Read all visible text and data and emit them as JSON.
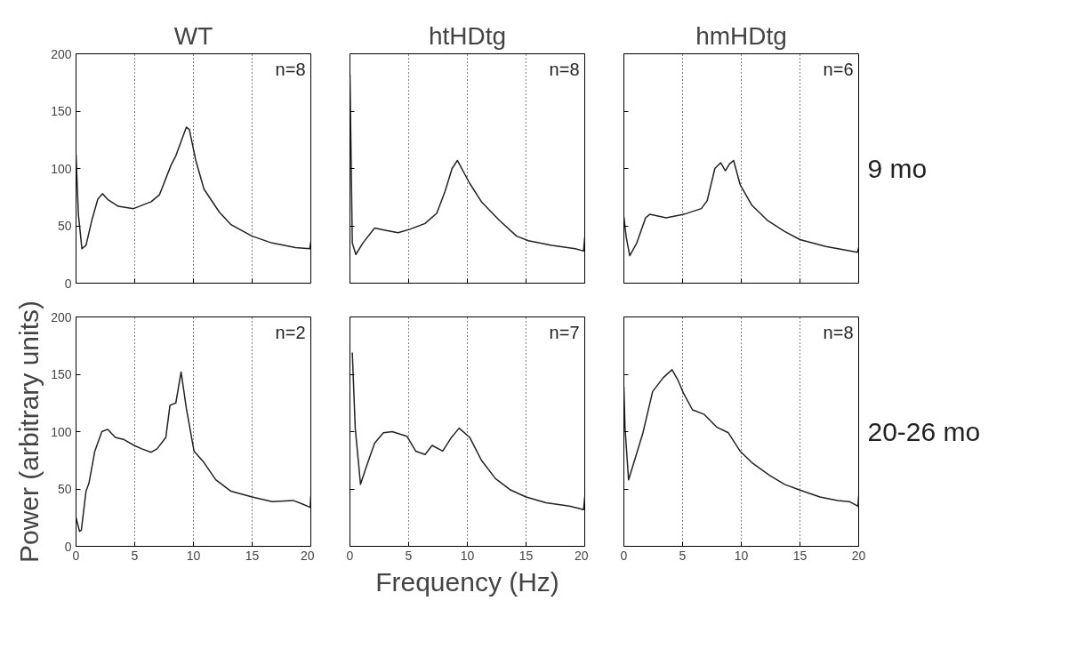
{
  "chart_data": [
    {
      "type": "line",
      "title": "WT",
      "annotations": [
        "n=8"
      ],
      "xlim": [
        0,
        20
      ],
      "ylim": [
        0,
        200
      ],
      "xticks": [
        0,
        5,
        10,
        15,
        20
      ],
      "yticks": [
        0,
        50,
        100,
        150,
        200
      ],
      "tick_labels": "y",
      "grid": "x",
      "line_style": "solid",
      "series": [
        {
          "color": "#222222",
          "x": [
            0,
            0.2,
            0.5,
            0.85,
            1.35,
            1.85,
            2.25,
            2.7,
            3.6,
            4.9,
            6.4,
            7.1,
            8.1,
            8.5,
            9.0,
            9.4,
            9.65,
            10.2,
            10.9,
            12.2,
            13.2,
            15.0,
            16.7,
            18.7,
            19.9,
            20
          ],
          "values": [
            112,
            60,
            30,
            33,
            55,
            73,
            78,
            73,
            67,
            65,
            71,
            77,
            103,
            111,
            125,
            136,
            134,
            107,
            82,
            62,
            51,
            41,
            35,
            31,
            30,
            36
          ]
        }
      ]
    },
    {
      "type": "line",
      "title": "htHDtg",
      "annotations": [
        "n=8"
      ],
      "xlim": [
        0,
        20
      ],
      "ylim": [
        0,
        200
      ],
      "xticks": [
        0,
        5,
        10,
        15,
        20
      ],
      "yticks": [
        0,
        50,
        100,
        150,
        200
      ],
      "tick_labels": false,
      "grid": "x",
      "line_style": "solid",
      "series": [
        {
          "color": "#222222",
          "x": [
            0,
            0.2,
            0.5,
            1.1,
            2.1,
            3.1,
            4.1,
            5.1,
            6.4,
            7.4,
            8.1,
            8.7,
            9.15,
            10.2,
            11.2,
            12.7,
            14.2,
            15.2,
            17.2,
            19.2,
            19.9,
            20
          ],
          "values": [
            182,
            35,
            25,
            35,
            48,
            46,
            44,
            47,
            52,
            61,
            80,
            100,
            107,
            87,
            71,
            55,
            41,
            37,
            33,
            30,
            28,
            40
          ]
        }
      ]
    },
    {
      "type": "line",
      "title": "hmHDtg",
      "annotations": [
        "n=6",
        "9 mo"
      ],
      "xlim": [
        0,
        20
      ],
      "ylim": [
        0,
        200
      ],
      "xticks": [
        0,
        5,
        10,
        15,
        20
      ],
      "yticks": [
        0,
        50,
        100,
        150,
        200
      ],
      "tick_labels": false,
      "grid": "x",
      "line_style": "solid",
      "series": [
        {
          "color": "#222222",
          "x": [
            0,
            0.2,
            0.5,
            1.1,
            1.85,
            2.2,
            3.6,
            5.1,
            6.6,
            7.1,
            7.75,
            8.25,
            8.65,
            9.0,
            9.35,
            9.9,
            10.9,
            12.2,
            13.7,
            15.0,
            17.2,
            19.9,
            20
          ],
          "values": [
            58,
            40,
            24,
            35,
            57,
            60,
            57,
            60,
            65,
            72,
            100,
            105,
            98,
            104,
            107,
            86,
            68,
            55,
            45,
            38,
            32,
            27,
            31
          ]
        }
      ]
    },
    {
      "type": "line",
      "ylabel": "Power (arbitrary units)",
      "annotations": [
        "n=2"
      ],
      "xlim": [
        0,
        20
      ],
      "ylim": [
        0,
        200
      ],
      "xticks": [
        0,
        5,
        10,
        15,
        20
      ],
      "yticks": [
        0,
        50,
        100,
        150,
        200
      ],
      "grid": "x",
      "line_style": "solid",
      "series": [
        {
          "color": "#222222",
          "x": [
            0,
            0.3,
            0.45,
            0.85,
            1.1,
            1.6,
            2.2,
            2.7,
            3.35,
            4.1,
            4.95,
            5.6,
            6.4,
            6.9,
            7.65,
            8.0,
            8.5,
            8.95,
            9.4,
            10.05,
            10.9,
            11.9,
            13.2,
            15.0,
            16.7,
            18.5,
            19.25,
            19.95,
            20
          ],
          "values": [
            25,
            13,
            14,
            48,
            55,
            83,
            100,
            102,
            95,
            93,
            88,
            85,
            82,
            85,
            95,
            123,
            125,
            152,
            120,
            83,
            73,
            58,
            48,
            43,
            39,
            40,
            37,
            34,
            44
          ]
        }
      ]
    },
    {
      "type": "line",
      "xlabel": "Frequency (Hz)",
      "annotations": [
        "n=7"
      ],
      "xlim": [
        0,
        20
      ],
      "ylim": [
        0,
        200
      ],
      "xticks": [
        0,
        5,
        10,
        15,
        20
      ],
      "yticks": [
        0,
        50,
        100,
        150,
        200
      ],
      "tick_labels": "x",
      "grid": "x",
      "line_style": "solid",
      "series": [
        {
          "color": "#222222",
          "x": [
            0.2,
            0.45,
            0.9,
            1.35,
            2.1,
            2.85,
            3.6,
            4.85,
            5.6,
            6.4,
            7.0,
            7.9,
            8.65,
            9.3,
            10.2,
            11.2,
            12.4,
            13.7,
            15.0,
            16.7,
            18.7,
            19.9,
            20
          ],
          "values": [
            169,
            103,
            54,
            68,
            90,
            99,
            100,
            96,
            83,
            80,
            88,
            83,
            95,
            103,
            95,
            75,
            59,
            49,
            43,
            38,
            35,
            32,
            43
          ]
        }
      ]
    },
    {
      "type": "line",
      "annotations": [
        "n=8",
        "20-26 mo"
      ],
      "xlim": [
        0,
        20
      ],
      "ylim": [
        0,
        200
      ],
      "xticks": [
        0,
        5,
        10,
        15,
        20
      ],
      "yticks": [
        0,
        50,
        100,
        150,
        200
      ],
      "tick_labels": "x",
      "grid": "x",
      "line_style": "solid",
      "series": [
        {
          "color": "#222222",
          "x": [
            0,
            0.1,
            0.4,
            0.85,
            1.6,
            2.45,
            3.35,
            4.1,
            4.6,
            5.1,
            5.85,
            6.85,
            7.9,
            8.9,
            9.9,
            10.9,
            12.4,
            13.7,
            15.0,
            16.7,
            18.2,
            19.2,
            19.95,
            20
          ],
          "values": [
            139,
            103,
            58,
            73,
            98,
            135,
            147,
            154,
            145,
            133,
            119,
            115,
            104,
            99,
            83,
            73,
            62,
            54,
            49,
            43,
            40,
            39,
            35,
            44
          ]
        }
      ]
    }
  ]
}
